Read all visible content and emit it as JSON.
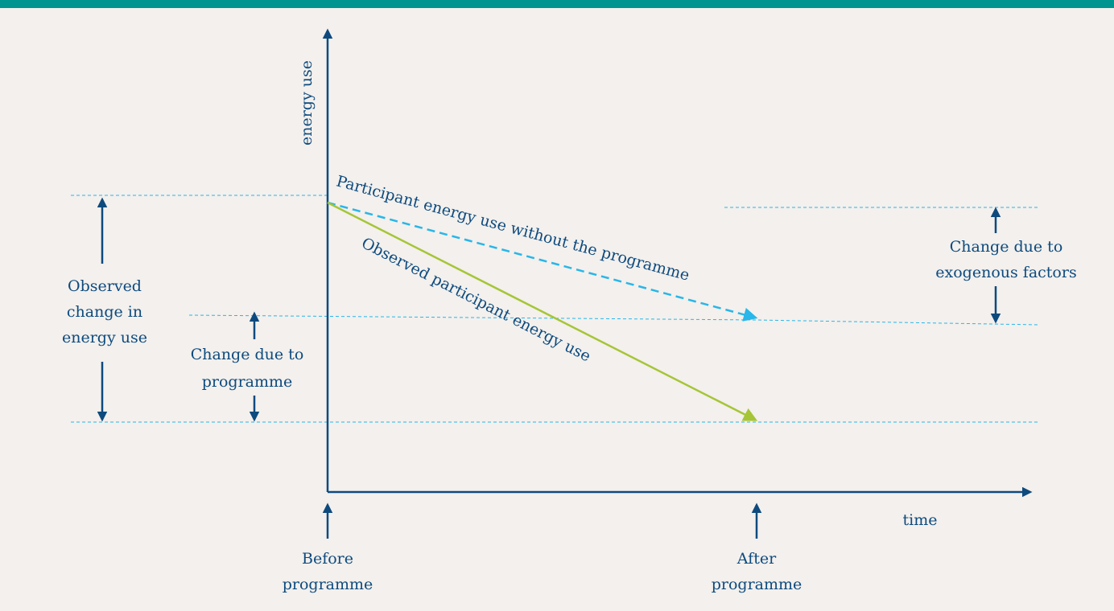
{
  "y_axis_label": "energy use",
  "x_axis_label": "time",
  "baseline_label": "Participant energy use without the programme",
  "observed_label": "Observed participant energy use",
  "exogenous_label": [
    "Change due to",
    "exogenous factors"
  ],
  "observed_change_label": [
    "Observed",
    "change in",
    "energy use"
  ],
  "programme_change_label": [
    "Change due to",
    "programme"
  ],
  "before_label": [
    "Before",
    "programme"
  ],
  "after_label": [
    "After",
    "programme"
  ]
}
